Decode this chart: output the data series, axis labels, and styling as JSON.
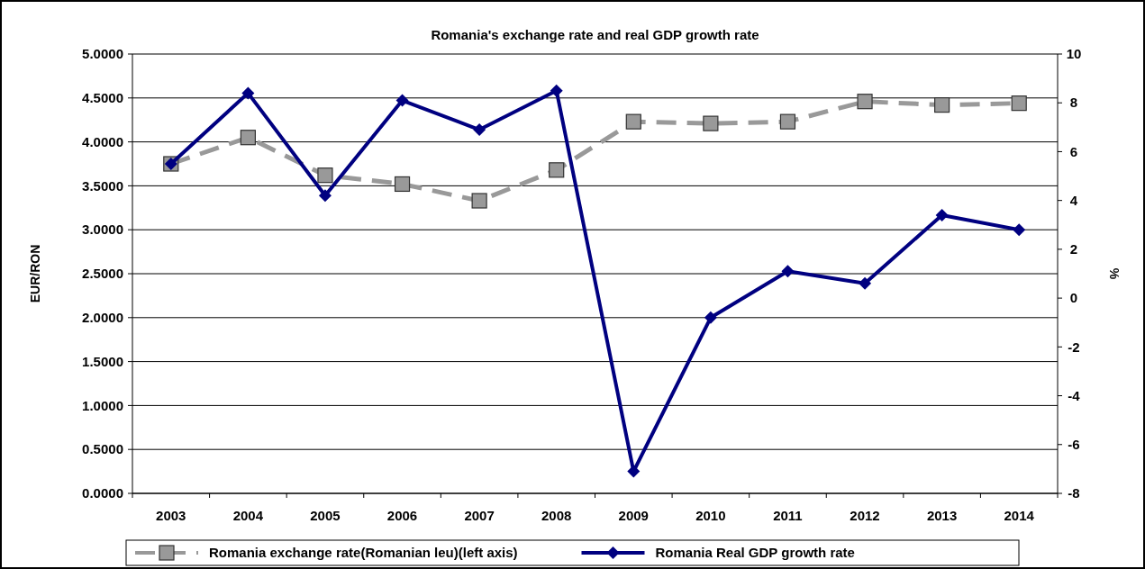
{
  "chart_data": {
    "type": "line",
    "title": "Romania's exchange rate and real GDP growth rate",
    "ylabel": "EUR/RON",
    "y2label": "%",
    "categories": [
      "2003",
      "2004",
      "2005",
      "2006",
      "2007",
      "2008",
      "2009",
      "2010",
      "2011",
      "2012",
      "2013",
      "2014"
    ],
    "series": [
      {
        "name": "Romania exchange rate(Romanian leu)(left axis)",
        "color": "#999999",
        "values": [
          3.75,
          4.05,
          3.62,
          3.52,
          3.33,
          3.68,
          4.23,
          4.21,
          4.23,
          4.46,
          4.42,
          4.44
        ],
        "marker": "square",
        "line_style": "dashed"
      },
      {
        "name": "Romania Real GDP growth rate",
        "color": "#000080",
        "values": [
          5.5,
          8.4,
          4.2,
          8.1,
          6.9,
          8.5,
          -7.1,
          -0.8,
          1.1,
          0.6,
          3.4,
          2.8
        ],
        "axis": "y2",
        "marker": "diamond",
        "line_style": "solid"
      }
    ],
    "ylim": [
      0,
      5
    ],
    "yticks": [
      {
        "value": 0,
        "label": "0.0000"
      },
      {
        "value": 0.5,
        "label": "0.5000"
      },
      {
        "value": 1,
        "label": "1.0000"
      },
      {
        "value": 1.5,
        "label": "1.5000"
      },
      {
        "value": 2,
        "label": "2.0000"
      },
      {
        "value": 2.5,
        "label": "2.5000"
      },
      {
        "value": 3,
        "label": "3.0000"
      },
      {
        "value": 3.5,
        "label": "3.5000"
      },
      {
        "value": 4,
        "label": "4.0000"
      },
      {
        "value": 4.5,
        "label": "4.5000"
      },
      {
        "value": 5,
        "label": "5.0000"
      }
    ],
    "y2lim": [
      -8,
      10
    ],
    "y2ticks": [
      -8,
      -6,
      -4,
      -2,
      0,
      2,
      4,
      6,
      8,
      10
    ],
    "grid": "y",
    "legend": "bottom"
  }
}
